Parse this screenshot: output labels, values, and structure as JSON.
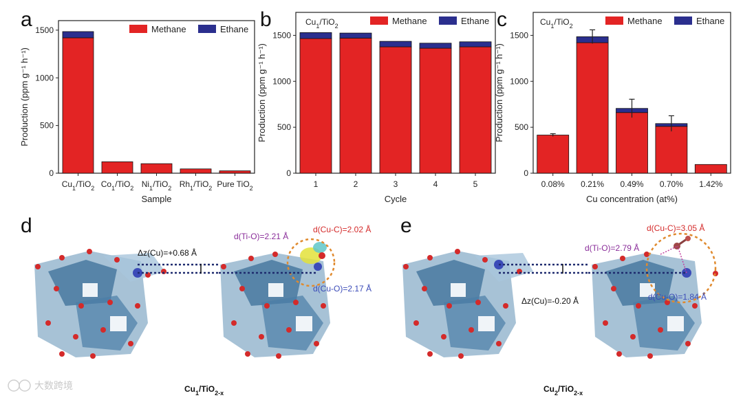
{
  "colors": {
    "methane": "#e32424",
    "ethane": "#2b2f8e",
    "errorbar": "#222222"
  },
  "chart_data": [
    {
      "panel": "a",
      "type": "bar",
      "stacked": true,
      "xlabel": "Sample",
      "ylabel": "Production (ppm g⁻¹ h⁻¹)",
      "ylim": [
        0,
        1600
      ],
      "yticks": [
        "0",
        "500",
        "1000",
        "1500"
      ],
      "categories": [
        "Cu1/TiO2",
        "Co1/TiO2",
        "Ni1/TiO2",
        "Rh1/TiO2",
        "Pure TiO2"
      ],
      "series": [
        {
          "name": "Methane",
          "values": [
            1420,
            120,
            100,
            45,
            25
          ]
        },
        {
          "name": "Ethane",
          "values": [
            65,
            0,
            0,
            0,
            0
          ]
        }
      ],
      "legend": "top-right"
    },
    {
      "panel": "b",
      "type": "bar",
      "stacked": true,
      "title": "Cu1/TiO2",
      "xlabel": "Cycle",
      "ylabel": "Production (ppm g⁻¹ h⁻¹)",
      "ylim": [
        0,
        1750
      ],
      "yticks": [
        "0",
        "500",
        "1000",
        "1500"
      ],
      "categories": [
        "1",
        "2",
        "3",
        "4",
        "5"
      ],
      "series": [
        {
          "name": "Methane",
          "values": [
            1465,
            1470,
            1375,
            1360,
            1375
          ]
        },
        {
          "name": "Ethane",
          "values": [
            65,
            55,
            60,
            55,
            55
          ]
        }
      ],
      "legend": "top-right"
    },
    {
      "panel": "c",
      "type": "bar",
      "stacked": true,
      "title": "Cu1/TiO2",
      "xlabel": "Cu concentration (at%)",
      "ylabel": "Production (ppm g⁻¹ h⁻¹)",
      "ylim": [
        0,
        1750
      ],
      "yticks": [
        "0",
        "500",
        "1000",
        "1500"
      ],
      "categories": [
        "0.08%",
        "0.21%",
        "0.49%",
        "0.70%",
        "1.42%"
      ],
      "series": [
        {
          "name": "Methane",
          "values": [
            415,
            1420,
            660,
            510,
            95
          ]
        },
        {
          "name": "Ethane",
          "values": [
            0,
            65,
            45,
            30,
            0
          ]
        }
      ],
      "errors": [
        15,
        75,
        100,
        85,
        0
      ],
      "legend": "top-right"
    }
  ],
  "panels": {
    "a": "a",
    "b": "b",
    "c": "c",
    "d": "d",
    "e": "e"
  },
  "annotations_d": {
    "dz": "Δz(Cu)=+0.68 Å",
    "dtio": "d(Ti-O)=2.21 Å",
    "dcuc": "d(Cu-C)=2.02 Å",
    "dcuo": "d(Cu-O)=2.17 Å",
    "label": "Cu1/TiO2-x"
  },
  "annotations_e": {
    "dz": "Δz(Cu)=-0.20 Å",
    "dtio": "d(Ti-O)=2.79 Å",
    "dcuc": "d(Cu-C)=3.05 Å",
    "dcuo": "d(Cu-O)=1.84 Å",
    "label": "Cu2/TiO2-x"
  },
  "watermark": "大数跨境"
}
